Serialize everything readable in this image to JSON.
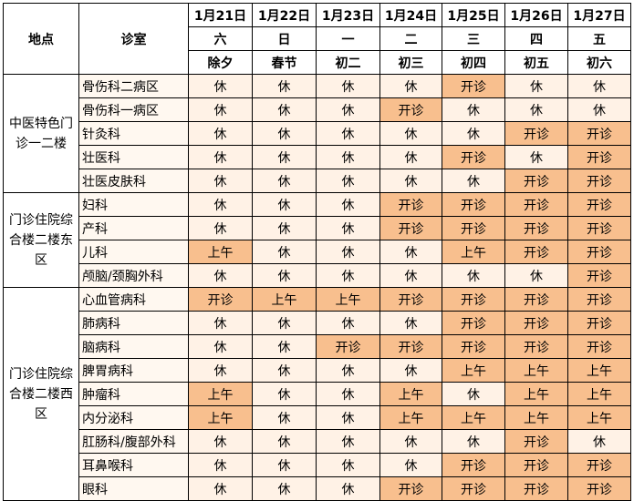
{
  "header": {
    "location_label": "地点",
    "dept_label": "诊室",
    "dates": [
      "1月21日",
      "1月22日",
      "1月23日",
      "1月24日",
      "1月25日",
      "1月26日",
      "1月27日"
    ],
    "weekdays": [
      "六",
      "日",
      "一",
      "二",
      "三",
      "四",
      "五"
    ],
    "lunar": [
      "除夕",
      "春节",
      "初二",
      "初三",
      "初四",
      "初五",
      "初六"
    ]
  },
  "legend_values": {
    "rest": "休",
    "open": "开诊",
    "am": "上午"
  },
  "colors": {
    "rest": "#fff2e6",
    "open": "#f8bf8e",
    "border": "#000000"
  },
  "groups": [
    {
      "location": "中医特色门诊一二楼",
      "rows": [
        {
          "dept": "骨伤科二病区",
          "cells": [
            "休",
            "休",
            "休",
            "休",
            "开诊",
            "休",
            "休"
          ]
        },
        {
          "dept": "骨伤科一病区",
          "cells": [
            "休",
            "休",
            "休",
            "开诊",
            "休",
            "休",
            "休"
          ]
        },
        {
          "dept": "针灸科",
          "cells": [
            "休",
            "休",
            "休",
            "休",
            "休",
            "开诊",
            "开诊"
          ]
        },
        {
          "dept": "壮医科",
          "cells": [
            "休",
            "休",
            "休",
            "休",
            "开诊",
            "休",
            "开诊"
          ]
        },
        {
          "dept": "壮医皮肤科",
          "cells": [
            "休",
            "休",
            "休",
            "休",
            "休",
            "开诊",
            "开诊"
          ]
        }
      ]
    },
    {
      "location": "门诊住院综合楼二楼东区",
      "rows": [
        {
          "dept": "妇科",
          "cells": [
            "休",
            "休",
            "休",
            "开诊",
            "开诊",
            "开诊",
            "开诊"
          ]
        },
        {
          "dept": "产科",
          "cells": [
            "休",
            "休",
            "休",
            "开诊",
            "开诊",
            "开诊",
            "开诊"
          ]
        },
        {
          "dept": "儿科",
          "cells": [
            "上午",
            "休",
            "休",
            "休",
            "上午",
            "开诊",
            "开诊"
          ]
        },
        {
          "dept": "颅脑/颈胸外科",
          "cells": [
            "休",
            "休",
            "休",
            "休",
            "休",
            "休",
            "开诊"
          ]
        }
      ]
    },
    {
      "location": "门诊住院综合楼二楼西区",
      "rows": [
        {
          "dept": "心血管病科",
          "cells": [
            "开诊",
            "上午",
            "上午",
            "开诊",
            "开诊",
            "开诊",
            "开诊"
          ]
        },
        {
          "dept": "肺病科",
          "cells": [
            "休",
            "休",
            "休",
            "休",
            "开诊",
            "开诊",
            "开诊"
          ]
        },
        {
          "dept": "脑病科",
          "cells": [
            "休",
            "休",
            "开诊",
            "开诊",
            "开诊",
            "开诊",
            "开诊"
          ]
        },
        {
          "dept": "脾胃病科",
          "cells": [
            "休",
            "休",
            "休",
            "休",
            "上午",
            "上午",
            "上午"
          ]
        },
        {
          "dept": "肿瘤科",
          "cells": [
            "上午",
            "休",
            "休",
            "上午",
            "休",
            "上午",
            "上午"
          ]
        },
        {
          "dept": "内分泌科",
          "cells": [
            "上午",
            "休",
            "休",
            "上午",
            "上午",
            "上午",
            "上午"
          ]
        },
        {
          "dept": "肛肠科/腹部外科",
          "cells": [
            "休",
            "休",
            "休",
            "休",
            "休",
            "开诊",
            "休"
          ]
        },
        {
          "dept": "耳鼻喉科",
          "cells": [
            "休",
            "休",
            "休",
            "休",
            "开诊",
            "开诊",
            "开诊"
          ]
        },
        {
          "dept": "眼科",
          "cells": [
            "休",
            "休",
            "休",
            "开诊",
            "开诊",
            "开诊",
            "开诊"
          ]
        }
      ]
    }
  ]
}
